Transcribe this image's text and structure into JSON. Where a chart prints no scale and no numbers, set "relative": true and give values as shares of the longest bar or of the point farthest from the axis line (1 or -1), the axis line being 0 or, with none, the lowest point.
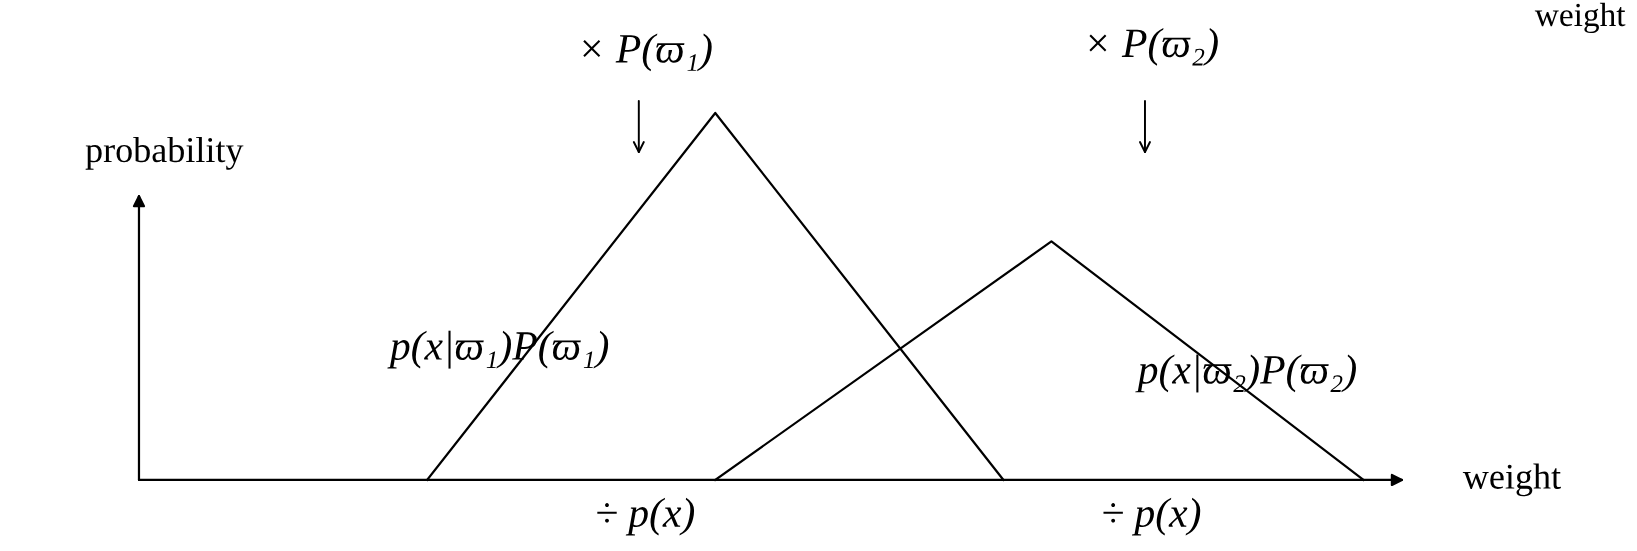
{
  "chart_data": {
    "type": "line",
    "relative": true,
    "xlabel": "weight",
    "ylabel": "probability",
    "categories": [
      null,
      null,
      null,
      null,
      null,
      null,
      null,
      null,
      null,
      null,
      null,
      null,
      null,
      null,
      null,
      null,
      null,
      null,
      null,
      null,
      null,
      null,
      null,
      null,
      null,
      null,
      null,
      null,
      null,
      null,
      null,
      null,
      null,
      null,
      null,
      null,
      null,
      null,
      null,
      null,
      null,
      null,
      null,
      null,
      null,
      null,
      null,
      null,
      null,
      null,
      null,
      null,
      null
    ],
    "marker": "none",
    "line_style": "solid",
    "series": [
      {
        "color": "#000000",
        "values": [
          null,
          null,
          null,
          null,
          null,
          null,
          null,
          null,
          null,
          null,
          null,
          null,
          0,
          null,
          null,
          null,
          null,
          null,
          null,
          null,
          null,
          null,
          null,
          null,
          1,
          null,
          null,
          null,
          null,
          null,
          null,
          null,
          null,
          null,
          null,
          null,
          0,
          null,
          null,
          null,
          null,
          null,
          null,
          null,
          null,
          null,
          null,
          null,
          null,
          null,
          null,
          null,
          null
        ]
      },
      {
        "color": "#000000",
        "values": [
          null,
          null,
          null,
          null,
          null,
          null,
          null,
          null,
          null,
          null,
          null,
          null,
          null,
          null,
          null,
          null,
          null,
          null,
          null,
          null,
          null,
          null,
          null,
          null,
          0,
          null,
          null,
          null,
          null,
          null,
          null,
          null,
          null,
          null,
          null,
          null,
          null,
          null,
          0.65,
          null,
          null,
          null,
          null,
          null,
          null,
          null,
          null,
          null,
          null,
          null,
          null,
          0,
          null
        ]
      }
    ],
    "annotations": [
      "× P(ϖ₁)",
      "× P(ϖ₂)",
      "p(x|ϖ₁)P(ϖ₁)",
      "p(x|ϖ₂)P(ϖ₂)",
      "÷ p(x)",
      "÷ p(x)",
      "weight"
    ]
  }
}
